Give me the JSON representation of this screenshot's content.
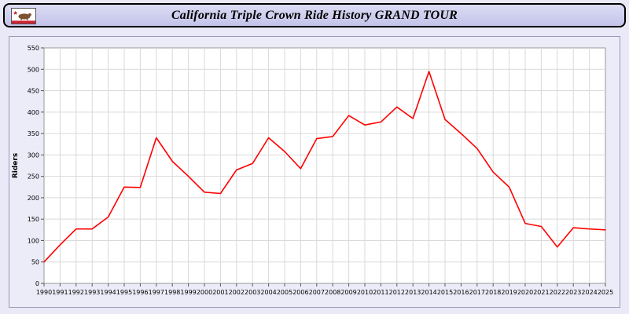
{
  "header": {
    "title": "California Triple Crown Ride History GRAND TOUR"
  },
  "colors": {
    "page_bg": "#e9e9f7",
    "header_bg": "#c3c3ea",
    "plot_bg": "#ffffff",
    "grid": "#d9d9d9",
    "plot_border": "#999999",
    "line": "#ff0000"
  },
  "chart_data": {
    "type": "line",
    "title": "California Triple Crown Ride History GRAND TOUR",
    "xlabel": "",
    "ylabel": "Riders",
    "ylim": [
      0,
      550
    ],
    "ytick_step": 50,
    "grid": true,
    "legend": "none",
    "line_color": "#ff0000",
    "categories": [
      "1990",
      "1991",
      "1992",
      "1993",
      "1994",
      "1995",
      "1996",
      "1997",
      "1998",
      "1999",
      "2000",
      "2001",
      "2002",
      "2003",
      "2004",
      "2005",
      "2006",
      "2007",
      "2008",
      "2009",
      "2010",
      "2011",
      "2012",
      "2013",
      "2014",
      "2015",
      "2016",
      "2017",
      "2018",
      "2019",
      "2020",
      "2021",
      "2022",
      "2023",
      "2024",
      "2025"
    ],
    "values": [
      50,
      90,
      127,
      127,
      155,
      225,
      224,
      340,
      285,
      250,
      213,
      210,
      265,
      280,
      340,
      308,
      268,
      338,
      343,
      392,
      370,
      377,
      412,
      385,
      495,
      383,
      350,
      315,
      260,
      225,
      140,
      133,
      85,
      130,
      127,
      125
    ]
  }
}
